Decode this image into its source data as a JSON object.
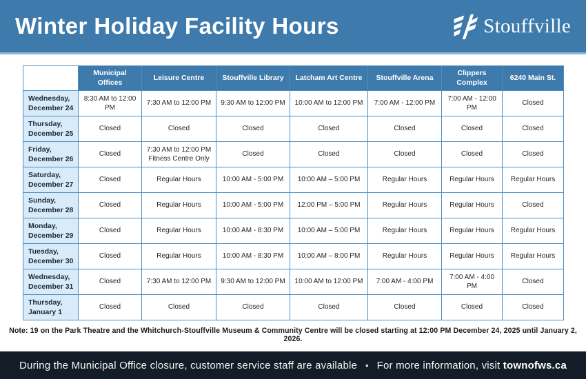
{
  "header": {
    "title": "Winter Holiday Facility Hours",
    "logo_text": "Stouffville"
  },
  "colors": {
    "brand_blue": "#3e7bac",
    "day_cell_blue": "#d9eaf9",
    "grid_border_blue": "#4a8ec5",
    "footer_navy": "#141c28"
  },
  "table": {
    "columns": [
      "Municipal Offices",
      "Leisure Centre",
      "Stouffville Library",
      "Latcham Art Centre",
      "Stouffville Arena",
      "Clippers Complex",
      "6240 Main St."
    ],
    "rows": [
      {
        "day": "Wednesday,",
        "date": "December 24",
        "cells": [
          "8:30 AM to 12:00 PM",
          "7:30 AM to 12:00 PM",
          "9:30 AM to 12:00 PM",
          "10:00 AM to 12:00 PM",
          "7:00 AM - 12:00 PM",
          "7:00 AM - 12:00 PM",
          "Closed"
        ]
      },
      {
        "day": "Thursday,",
        "date": "December 25",
        "cells": [
          "Closed",
          "Closed",
          "Closed",
          "Closed",
          "Closed",
          "Closed",
          "Closed"
        ]
      },
      {
        "day": "Friday,",
        "date": "December 26",
        "cells": [
          "Closed",
          "7:30 AM to 12:00 PM\nFitness Centre Only",
          "Closed",
          "Closed",
          "Closed",
          "Closed",
          "Closed"
        ]
      },
      {
        "day": "Saturday,",
        "date": "December 27",
        "cells": [
          "Closed",
          "Regular Hours",
          "10:00 AM - 5:00 PM",
          "10:00 AM – 5:00 PM",
          "Regular Hours",
          "Regular Hours",
          "Regular Hours"
        ]
      },
      {
        "day": "Sunday,",
        "date": "December 28",
        "cells": [
          "Closed",
          "Regular Hours",
          "10:00 AM - 5:00 PM",
          "12:00 PM – 5:00 PM",
          "Regular Hours",
          "Regular Hours",
          "Closed"
        ]
      },
      {
        "day": "Monday,",
        "date": "December 29",
        "cells": [
          "Closed",
          "Regular Hours",
          "10:00 AM - 8:30 PM",
          "10:00 AM – 5:00 PM",
          "Regular Hours",
          "Regular Hours",
          "Regular Hours"
        ]
      },
      {
        "day": "Tuesday,",
        "date": "December 30",
        "cells": [
          "Closed",
          "Regular Hours",
          "10:00 AM - 8:30 PM",
          "10:00 AM – 8:00 PM",
          "Regular Hours",
          "Regular Hours",
          "Regular Hours"
        ]
      },
      {
        "day": "Wednesday,",
        "date": "December 31",
        "cells": [
          "Closed",
          "7:30 AM to 12:00 PM",
          "9:30 AM to 12:00 PM",
          "10:00 AM to 12:00 PM",
          "7:00 AM - 4:00 PM",
          "7:00 AM - 4:00 PM",
          "Closed"
        ]
      },
      {
        "day": "Thursday,",
        "date": "January 1",
        "cells": [
          "Closed",
          "Closed",
          "Closed",
          "Closed",
          "Closed",
          "Closed",
          "Closed"
        ]
      }
    ]
  },
  "note": "Note: 19 on the Park Theatre and the Whitchurch-Stouffville Museum & Community Centre will be closed starting at 12:00 PM December 24, 2025 until January 2, 2026.",
  "footer": {
    "left": "During the Municipal Office closure, customer service staff are available",
    "separator": "•",
    "right_prefix": "For more information, visit",
    "site": "townofws.ca"
  }
}
